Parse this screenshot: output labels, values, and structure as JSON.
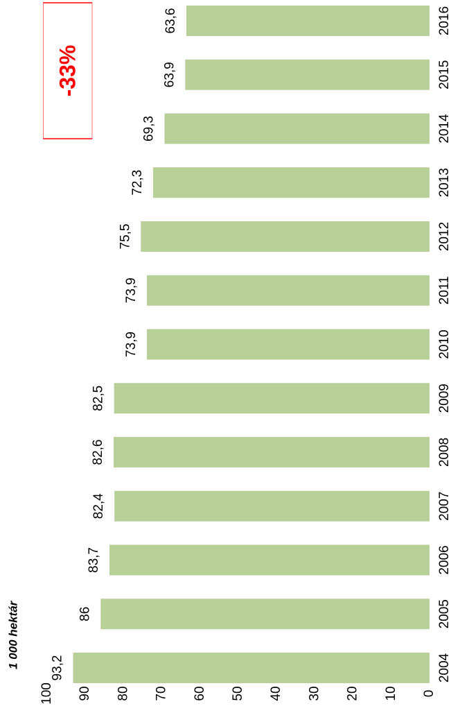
{
  "chart_data": {
    "type": "bar",
    "y_label": "1 000 hektár",
    "annotation": "-33%",
    "categories": [
      "2004",
      "2005",
      "2006",
      "2007",
      "2008",
      "2009",
      "2010",
      "2011",
      "2012",
      "2013",
      "2014",
      "2015",
      "2016"
    ],
    "values": [
      93.2,
      86,
      83.7,
      82.4,
      82.6,
      82.5,
      73.9,
      73.9,
      75.5,
      72.3,
      69.3,
      63.9,
      63.6
    ],
    "value_labels": [
      "93,2",
      "86",
      "83,7",
      "82,4",
      "82,6",
      "82,5",
      "73,9",
      "73,9",
      "75,5",
      "72,3",
      "69,3",
      "63,9",
      "63,6"
    ],
    "color": "#b8cf98",
    "ylim": [
      0,
      100
    ],
    "yticks": [
      0,
      10,
      20,
      30,
      40,
      50,
      60,
      70,
      80,
      90,
      100
    ],
    "grid": false
  }
}
